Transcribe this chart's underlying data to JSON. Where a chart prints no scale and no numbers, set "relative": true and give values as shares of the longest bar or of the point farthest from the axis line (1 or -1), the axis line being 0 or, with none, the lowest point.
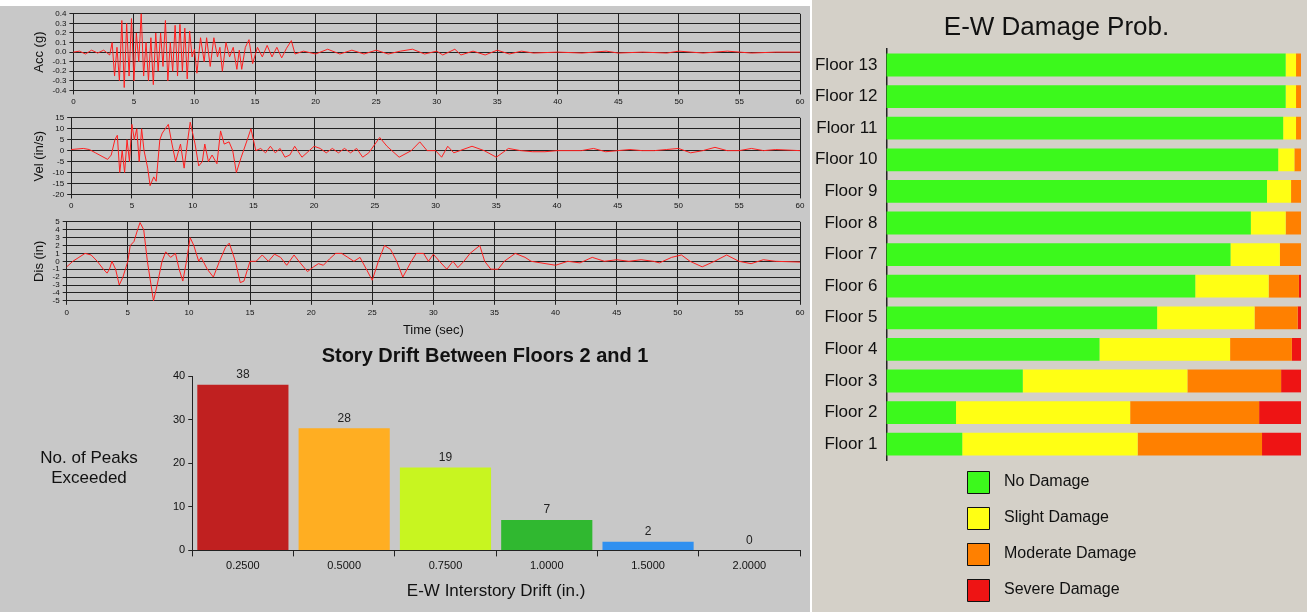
{
  "chart_data": [
    {
      "type": "line",
      "ylabel": "Acc (g)",
      "xlim": [
        0,
        60
      ],
      "xticks": [
        0,
        5,
        10,
        15,
        20,
        25,
        30,
        35,
        40,
        45,
        50,
        55,
        60
      ],
      "ylim": [
        -0.4,
        0.4
      ],
      "yticks": [
        -0.4,
        -0.3,
        -0.2,
        -0.1,
        {
          "value": 0,
          "label": "0.0"
        },
        0.1,
        0.2,
        0.3,
        0.4
      ],
      "grid": true,
      "marker": "none",
      "line_style": "solid",
      "series": [
        {
          "color": "#ff2020",
          "x": [
            0,
            0.5,
            1,
            1.5,
            2,
            2.5,
            3,
            3.2,
            3.4,
            3.6,
            3.8,
            4,
            4.2,
            4.4,
            4.6,
            4.8,
            5,
            5.2,
            5.4,
            5.6,
            5.8,
            6,
            6.2,
            6.4,
            6.6,
            6.8,
            7,
            7.2,
            7.4,
            7.6,
            7.8,
            8,
            8.2,
            8.4,
            8.6,
            8.8,
            9,
            9.2,
            9.4,
            9.6,
            9.8,
            10,
            10.2,
            10.5,
            10.8,
            11,
            11.3,
            11.6,
            11.9,
            12.1,
            12.3,
            12.6,
            12.9,
            13.2,
            13.5,
            13.7,
            13.9,
            14.2,
            14.5,
            14.8,
            15.2,
            15.6,
            16,
            16.4,
            16.8,
            17.2,
            17.6,
            18,
            18.3,
            19,
            20,
            21,
            22,
            23,
            24,
            25,
            26,
            27,
            28,
            29,
            30,
            30.5,
            31.5,
            32,
            33,
            34,
            35,
            36,
            37,
            38,
            40,
            42,
            44,
            45,
            47,
            49,
            50,
            52,
            54,
            56,
            58,
            60
          ],
          "values": [
            0,
            0.01,
            -0.02,
            0.02,
            -0.01,
            0.02,
            -0.03,
            0.1,
            -0.25,
            0.05,
            -0.3,
            0.33,
            -0.37,
            0.3,
            -0.25,
            0.35,
            -0.3,
            0.2,
            -0.1,
            0.4,
            -0.25,
            0.1,
            -0.3,
            0.15,
            -0.34,
            0.2,
            -0.2,
            0.2,
            -0.15,
            0.33,
            -0.3,
            0.1,
            -0.2,
            0.28,
            -0.25,
            0.29,
            -0.2,
            0.25,
            -0.28,
            0.22,
            -0.05,
            0.03,
            -0.22,
            0.15,
            -0.1,
            0.15,
            -0.15,
            0.15,
            -0.05,
            0.05,
            -0.2,
            0.1,
            -0.05,
            0.05,
            -0.18,
            0.02,
            -0.18,
            0.05,
            0.13,
            -0.12,
            0.05,
            -0.05,
            0.07,
            -0.05,
            0.05,
            -0.06,
            0.04,
            0.12,
            -0.02,
            0.01,
            -0.02,
            0.03,
            -0.02,
            0.02,
            -0.02,
            0.02,
            -0.02,
            0.01,
            0.03,
            -0.02,
            0.01,
            -0.03,
            0.03,
            -0.03,
            0.01,
            -0.03,
            0.02,
            -0.02,
            0.01,
            -0.01,
            0,
            -0.01,
            0.01,
            -0.01,
            0,
            -0.01,
            0.01,
            -0.01,
            0.01,
            -0.01,
            0,
            0
          ]
        }
      ]
    },
    {
      "type": "line",
      "ylabel": "Vel (in/s)",
      "xlim": [
        0,
        60
      ],
      "xticks": [
        0,
        5,
        10,
        15,
        20,
        25,
        30,
        35,
        40,
        45,
        50,
        55,
        60
      ],
      "ylim": [
        -20,
        15
      ],
      "yticks": [
        -20,
        -15,
        -10,
        -5,
        0,
        5,
        10,
        15
      ],
      "grid": true,
      "marker": "none",
      "line_style": "solid",
      "series": [
        {
          "color": "#ff2020",
          "x": [
            0,
            1,
            1.5,
            2,
            3,
            3.3,
            3.6,
            3.8,
            4,
            4.2,
            4.4,
            4.6,
            4.8,
            5,
            5.2,
            5.4,
            5.6,
            5.8,
            6,
            6.3,
            6.5,
            6.8,
            7,
            7.3,
            7.5,
            8,
            8.3,
            8.6,
            9,
            9.3,
            9.6,
            9.8,
            10.2,
            10.5,
            10.8,
            11,
            11.3,
            11.6,
            12,
            12.3,
            12.6,
            13,
            13.3,
            13.6,
            14,
            14.5,
            14.8,
            15.2,
            15.6,
            16,
            16.4,
            16.8,
            17.2,
            17.6,
            18,
            18.4,
            19,
            20,
            20.5,
            21,
            21.5,
            22,
            22.5,
            23,
            23.5,
            24,
            24.5,
            25.4,
            26,
            27,
            28,
            28.7,
            29.3,
            30,
            30.5,
            31,
            31.5,
            32,
            33,
            34,
            35,
            36,
            37,
            38,
            39,
            40,
            42,
            43,
            44,
            45,
            46,
            47,
            48,
            49,
            50,
            51,
            52,
            53,
            54,
            55,
            56,
            57,
            58,
            60
          ],
          "values": [
            0.5,
            1,
            0.5,
            -1,
            -4,
            -2,
            5,
            7,
            -10,
            0,
            -10,
            5,
            -5,
            12,
            5,
            10,
            -5,
            10,
            0,
            -8,
            -16,
            -12,
            -14,
            5,
            8,
            12,
            3,
            -5,
            3,
            -8,
            5,
            13,
            3,
            -7,
            -5,
            3,
            -5,
            -2,
            -6,
            9,
            3,
            4,
            0,
            -10,
            -3,
            5,
            10,
            0,
            1,
            -1,
            2,
            -1,
            1,
            -3,
            -2,
            2,
            -3,
            2,
            1,
            -1,
            1,
            -1,
            1,
            -1,
            1,
            -3,
            -1,
            6,
            2,
            -3,
            0,
            4,
            0,
            0,
            -3,
            2,
            -1,
            0,
            2,
            0,
            -3,
            1,
            0,
            -0.5,
            -0.5,
            0,
            0,
            1,
            -0.5,
            0,
            0.5,
            0,
            0,
            0.5,
            1,
            -1,
            0,
            1.5,
            0,
            0,
            1,
            0,
            0.5,
            0
          ]
        }
      ]
    },
    {
      "type": "line",
      "ylabel": "Dis (in)",
      "xlabel": "Time (sec)",
      "xlim": [
        0,
        60
      ],
      "xticks": [
        0,
        5,
        10,
        15,
        20,
        25,
        30,
        35,
        40,
        45,
        50,
        55,
        60
      ],
      "ylim": [
        -5,
        5
      ],
      "yticks": [
        -5,
        -4,
        -3,
        -2,
        -1,
        0,
        1,
        2,
        3,
        4,
        5
      ],
      "grid": true,
      "marker": "none",
      "line_style": "solid",
      "series": [
        {
          "color": "#ff2020",
          "x": [
            0,
            0.5,
            1,
            1.5,
            2,
            2.5,
            3,
            3.3,
            3.5,
            3.7,
            4,
            4.3,
            4.6,
            5,
            5.2,
            5.5,
            5.8,
            6,
            6.3,
            6.6,
            7,
            7.1,
            7.4,
            7.8,
            8.1,
            8.5,
            8.9,
            9.2,
            9.5,
            9.8,
            10.1,
            10.4,
            10.8,
            11,
            11.5,
            12,
            12.5,
            13,
            13.3,
            13.8,
            14.2,
            14.5,
            15,
            15.5,
            16,
            16.5,
            17,
            17.5,
            18,
            18.6,
            19,
            19.7,
            20.2,
            20.6,
            21,
            21.5,
            22,
            22.5,
            23,
            23.5,
            24,
            25,
            25.5,
            26,
            26.5,
            27,
            27.5,
            28.2,
            28.6,
            29.2,
            29.6,
            30,
            30.5,
            31.1,
            31.6,
            32,
            32.5,
            33,
            33.8,
            34.2,
            34.7,
            35.3,
            35.8,
            36.7,
            37.5,
            38,
            40,
            41,
            42,
            43,
            44,
            45,
            46,
            47,
            48,
            48.5,
            49.5,
            50.3,
            51,
            52,
            53,
            54,
            55,
            56,
            57,
            58,
            60
          ],
          "values": [
            -0.7,
            0,
            0.5,
            1,
            0.8,
            0,
            -1,
            -1.5,
            -1,
            0,
            -1,
            -3,
            -2,
            0,
            2,
            2.5,
            4,
            4.9,
            4,
            0,
            -4,
            -5,
            -3,
            0,
            1.2,
            0.5,
            1,
            -1,
            -2.5,
            0,
            3,
            2,
            0,
            0.5,
            -1,
            -2,
            0,
            1.8,
            2.3,
            0,
            -2.7,
            -2.5,
            0,
            0,
            0.8,
            0,
            0.9,
            0.5,
            -0.5,
            0.8,
            0,
            -1.3,
            -0.7,
            -0.3,
            -0.5,
            0.3,
            1,
            1,
            0.5,
            0,
            0.5,
            -2.4,
            0,
            2,
            1.5,
            0,
            -2,
            0,
            1,
            1,
            0,
            0.9,
            0,
            -1,
            0,
            -0.8,
            0,
            1,
            2,
            0,
            -1,
            -1,
            0,
            1,
            0.5,
            0,
            -0.5,
            0,
            -0.2,
            0.5,
            0,
            0.2,
            0,
            0.2,
            0,
            -0.2,
            0.5,
            0.8,
            0,
            -0.7,
            0,
            0.8,
            0,
            -0.3,
            0.2,
            0,
            -0.1
          ]
        }
      ]
    },
    {
      "type": "bar",
      "title": "Story Drift Between Floors 2 and 1",
      "xlabel": "E-W Interstory Drift (in.)",
      "ylabel": "No. of Peaks Exceeded",
      "categories": [
        "0.2500",
        "0.5000",
        "0.7500",
        "1.0000",
        "1.5000",
        "2.0000"
      ],
      "values": [
        38,
        28,
        19,
        7,
        2,
        0
      ],
      "colors": [
        "#c02020",
        "#ffae22",
        "#c8f520",
        "#30b830",
        "#3090f0",
        "#a0a0a0"
      ],
      "ylim": [
        0,
        40
      ],
      "yticks": [
        0,
        10,
        20,
        30,
        40
      ],
      "data_labels": true,
      "grid": false,
      "legend": false
    },
    {
      "type": "bar",
      "title": "E-W Damage Prob.",
      "orientation": "horizontal",
      "stacked": true,
      "relative": true,
      "legend": "bottom",
      "grid": false,
      "categories": [
        "Floor 13",
        "Floor 12",
        "Floor 11",
        "Floor 10",
        "Floor 9",
        "Floor 8",
        "Floor 7",
        "Floor 6",
        "Floor 5",
        "Floor 4",
        "Floor 3",
        "Floor 2",
        "Floor 1"
      ],
      "series": [
        {
          "name": "No Damage",
          "color": "#3cf91c",
          "values": [
            0.963,
            0.963,
            0.957,
            0.945,
            0.918,
            0.879,
            0.83,
            0.745,
            0.653,
            0.514,
            0.329,
            0.168,
            0.183
          ]
        },
        {
          "name": "Slight Damage",
          "color": "#ffff14",
          "values": [
            0.025,
            0.025,
            0.031,
            0.039,
            0.058,
            0.084,
            0.119,
            0.177,
            0.235,
            0.315,
            0.397,
            0.42,
            0.423
          ]
        },
        {
          "name": "Moderate Damage",
          "color": "#ff8000",
          "values": [
            0.012,
            0.012,
            0.012,
            0.016,
            0.024,
            0.037,
            0.051,
            0.073,
            0.104,
            0.149,
            0.226,
            0.311,
            0.3
          ]
        },
        {
          "name": "Severe Damage",
          "color": "#ee1414",
          "values": [
            0,
            0,
            0,
            0,
            0,
            0,
            0,
            0.005,
            0.008,
            0.022,
            0.048,
            0.101,
            0.094
          ]
        }
      ]
    }
  ]
}
